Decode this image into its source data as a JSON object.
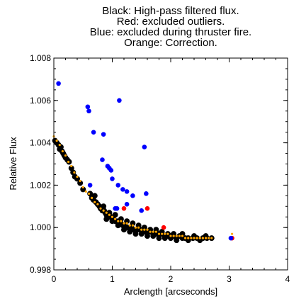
{
  "chart_data": {
    "type": "scatter",
    "title_lines": [
      "Black: High-pass filtered flux.",
      "Red: excluded outliers.",
      "Blue: excluded during thruster fire.",
      "Orange: Correction."
    ],
    "xlabel": "Arclength [arcseconds]",
    "ylabel": "Relative Flux",
    "xlim": [
      0,
      4
    ],
    "ylim": [
      0.998,
      1.008
    ],
    "xticks": [
      0,
      1,
      2,
      3,
      4
    ],
    "yticks": [
      0.998,
      1.0,
      1.002,
      1.004,
      1.006,
      1.008
    ],
    "xtick_labels": [
      "0",
      "1",
      "2",
      "3",
      "4"
    ],
    "ytick_labels": [
      "0.998",
      "1.000",
      "1.002",
      "1.004",
      "1.006",
      "1.008"
    ],
    "grid": false,
    "series": [
      {
        "color": "#000000",
        "points": [
          [
            0.02,
            1.0041
          ],
          [
            0.05,
            1.004
          ],
          [
            0.08,
            1.0039
          ],
          [
            0.1,
            1.0037
          ],
          [
            0.12,
            1.0038
          ],
          [
            0.14,
            1.0036
          ],
          [
            0.16,
            1.0035
          ],
          [
            0.18,
            1.0034
          ],
          [
            0.2,
            1.0033
          ],
          [
            0.23,
            1.0032
          ],
          [
            0.26,
            1.0031
          ],
          [
            0.3,
            1.0028
          ],
          [
            0.33,
            1.0026
          ],
          [
            0.36,
            1.0024
          ],
          [
            0.4,
            1.0023
          ],
          [
            0.45,
            1.0021
          ],
          [
            0.5,
            1.0018
          ],
          [
            0.62,
            1.0016
          ],
          [
            0.65,
            1.0014
          ],
          [
            0.68,
            1.0013
          ],
          [
            0.72,
            1.0012
          ],
          [
            0.75,
            1.0011
          ],
          [
            0.78,
            1.001
          ],
          [
            0.8,
            1.0009
          ],
          [
            0.83,
            1.0008
          ],
          [
            0.86,
            1.0008
          ],
          [
            0.88,
            1.0007
          ],
          [
            0.9,
            1.0006
          ],
          [
            0.93,
            1.0006
          ],
          [
            0.96,
            1.0005
          ],
          [
            0.98,
            1.0005
          ],
          [
            1.0,
            1.0004
          ],
          [
            1.02,
            1.0004
          ],
          [
            1.05,
            1.0003
          ],
          [
            1.08,
            1.0003
          ],
          [
            1.1,
            1.0002
          ],
          [
            1.12,
            1.0002
          ],
          [
            1.15,
            1.0002
          ],
          [
            1.18,
            1.0001
          ],
          [
            1.2,
            1.0001
          ],
          [
            1.22,
            1.0001
          ],
          [
            1.25,
            1.0
          ],
          [
            1.28,
            1.0
          ],
          [
            1.3,
            1.0
          ],
          [
            1.33,
            1.0
          ],
          [
            1.36,
            0.9999
          ],
          [
            1.4,
            0.9999
          ],
          [
            1.44,
            0.9999
          ],
          [
            1.48,
            0.9999
          ],
          [
            1.52,
            0.9998
          ],
          [
            1.56,
            0.9998
          ],
          [
            1.6,
            0.9998
          ],
          [
            1.65,
            0.9998
          ],
          [
            1.7,
            0.9997
          ],
          [
            1.75,
            0.9997
          ],
          [
            1.8,
            0.9997
          ],
          [
            1.85,
            0.9997
          ],
          [
            1.9,
            0.9996
          ],
          [
            1.95,
            0.9996
          ],
          [
            2.0,
            0.9996
          ],
          [
            2.05,
            0.9996
          ],
          [
            2.1,
            0.9995
          ],
          [
            2.15,
            0.9996
          ],
          [
            2.2,
            0.9995
          ],
          [
            2.25,
            0.9995
          ],
          [
            2.3,
            0.9995
          ],
          [
            2.38,
            0.9995
          ],
          [
            2.45,
            0.9995
          ],
          [
            2.55,
            0.9995
          ],
          [
            2.62,
            0.9995
          ],
          [
            2.7,
            0.9995
          ],
          [
            0.7,
            1.0015
          ],
          [
            0.85,
            1.001
          ],
          [
            0.95,
            1.0007
          ],
          [
            1.05,
            1.0006
          ],
          [
            1.15,
            1.0004
          ],
          [
            1.25,
            1.0003
          ],
          [
            1.35,
            1.0002
          ],
          [
            1.45,
            1.0001
          ],
          [
            1.55,
            1.0
          ],
          [
            1.65,
            0.9999
          ],
          [
            1.75,
            0.9999
          ],
          [
            1.85,
            0.9998
          ],
          [
            1.95,
            0.9997
          ],
          [
            2.05,
            0.9997
          ],
          [
            2.2,
            0.9997
          ],
          [
            2.4,
            0.9996
          ],
          [
            2.6,
            0.9996
          ],
          [
            0.9,
            1.0004
          ],
          [
            1.0,
            1.0003
          ],
          [
            1.1,
            1.0001
          ],
          [
            1.2,
            0.9999
          ],
          [
            1.3,
            0.9998
          ],
          [
            1.4,
            0.9997
          ],
          [
            1.5,
            0.9997
          ],
          [
            1.6,
            0.9996
          ],
          [
            1.7,
            0.9996
          ],
          [
            1.8,
            0.9995
          ],
          [
            1.9,
            0.9995
          ],
          [
            2.0,
            0.9995
          ],
          [
            2.1,
            0.9994
          ],
          [
            2.3,
            0.9994
          ],
          [
            2.5,
            0.9994
          ]
        ]
      },
      {
        "color": "#ff0000",
        "points": [
          [
            1.2,
            1.0009
          ],
          [
            1.6,
            1.0009
          ],
          [
            1.88,
            1.0
          ],
          [
            3.05,
            0.9995
          ]
        ]
      },
      {
        "color": "#0000ff",
        "points": [
          [
            0.08,
            1.0068
          ],
          [
            0.58,
            1.0057
          ],
          [
            0.6,
            1.0055
          ],
          [
            0.68,
            1.0045
          ],
          [
            0.85,
            1.0044
          ],
          [
            1.12,
            1.006
          ],
          [
            1.55,
            1.0038
          ],
          [
            0.83,
            1.0032
          ],
          [
            0.92,
            1.0029
          ],
          [
            0.98,
            1.0027
          ],
          [
            1.0,
            1.0023
          ],
          [
            1.1,
            1.002
          ],
          [
            1.18,
            1.0018
          ],
          [
            1.25,
            1.0017
          ],
          [
            1.35,
            1.0015
          ],
          [
            1.58,
            1.0016
          ],
          [
            0.62,
            1.002
          ],
          [
            0.95,
            1.0028
          ],
          [
            1.05,
            1.0009
          ],
          [
            1.25,
            1.0011
          ],
          [
            1.5,
            1.0008
          ],
          [
            1.08,
            1.0009
          ],
          [
            3.03,
            0.9995
          ]
        ]
      },
      {
        "color": "#ffa500",
        "points": [
          [
            0.0,
            1.0043
          ],
          [
            0.05,
            1.0041
          ],
          [
            0.1,
            1.0039
          ],
          [
            0.15,
            1.0036
          ],
          [
            0.2,
            1.0034
          ],
          [
            0.25,
            1.0031
          ],
          [
            0.3,
            1.0029
          ],
          [
            0.35,
            1.0026
          ],
          [
            0.4,
            1.0024
          ],
          [
            0.45,
            1.0022
          ],
          [
            0.5,
            1.0019
          ],
          [
            0.55,
            1.0017
          ],
          [
            0.6,
            1.0016
          ],
          [
            0.65,
            1.0014
          ],
          [
            0.7,
            1.0012
          ],
          [
            0.75,
            1.0011
          ],
          [
            0.8,
            1.0009
          ],
          [
            0.85,
            1.0008
          ],
          [
            0.9,
            1.0007
          ],
          [
            0.95,
            1.0006
          ],
          [
            1.0,
            1.0005
          ],
          [
            1.05,
            1.0004
          ],
          [
            1.1,
            1.0003
          ],
          [
            1.15,
            1.0003
          ],
          [
            1.2,
            1.0002
          ],
          [
            1.25,
            1.0002
          ],
          [
            1.3,
            1.0001
          ],
          [
            1.35,
            1.0001
          ],
          [
            1.4,
            1.0
          ],
          [
            1.45,
            1.0
          ],
          [
            1.5,
            0.9999
          ],
          [
            1.55,
            0.9999
          ],
          [
            1.6,
            0.9999
          ],
          [
            1.65,
            0.9998
          ],
          [
            1.7,
            0.9998
          ],
          [
            1.75,
            0.9998
          ],
          [
            1.8,
            0.9997
          ],
          [
            1.85,
            0.9997
          ],
          [
            1.9,
            0.9997
          ],
          [
            1.95,
            0.9997
          ],
          [
            2.0,
            0.9996
          ],
          [
            2.05,
            0.9996
          ],
          [
            2.1,
            0.9996
          ],
          [
            2.15,
            0.9996
          ],
          [
            2.2,
            0.9996
          ],
          [
            2.25,
            0.9995
          ],
          [
            2.3,
            0.9995
          ],
          [
            2.35,
            0.9995
          ],
          [
            2.4,
            0.9995
          ],
          [
            2.45,
            0.9995
          ],
          [
            2.5,
            0.9995
          ],
          [
            2.55,
            0.9995
          ],
          [
            2.6,
            0.9995
          ],
          [
            2.65,
            0.9995
          ],
          [
            2.7,
            0.9995
          ],
          [
            3.05,
            0.9997
          ]
        ]
      }
    ]
  }
}
